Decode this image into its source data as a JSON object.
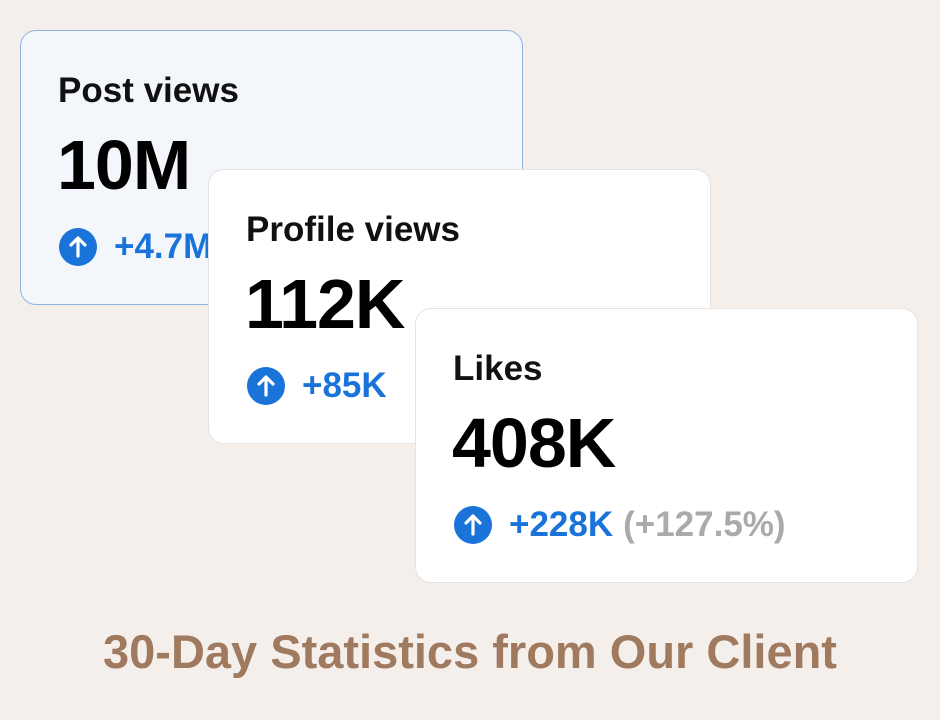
{
  "cards": [
    {
      "title": "Post views",
      "value": "10M",
      "change": "+4.7M"
    },
    {
      "title": "Profile views",
      "value": "112K",
      "change": "+85K"
    },
    {
      "title": "Likes",
      "value": "408K",
      "change": "+228K",
      "percent": "(+127.5%)"
    }
  ],
  "caption": "30-Day Statistics from Our Client"
}
